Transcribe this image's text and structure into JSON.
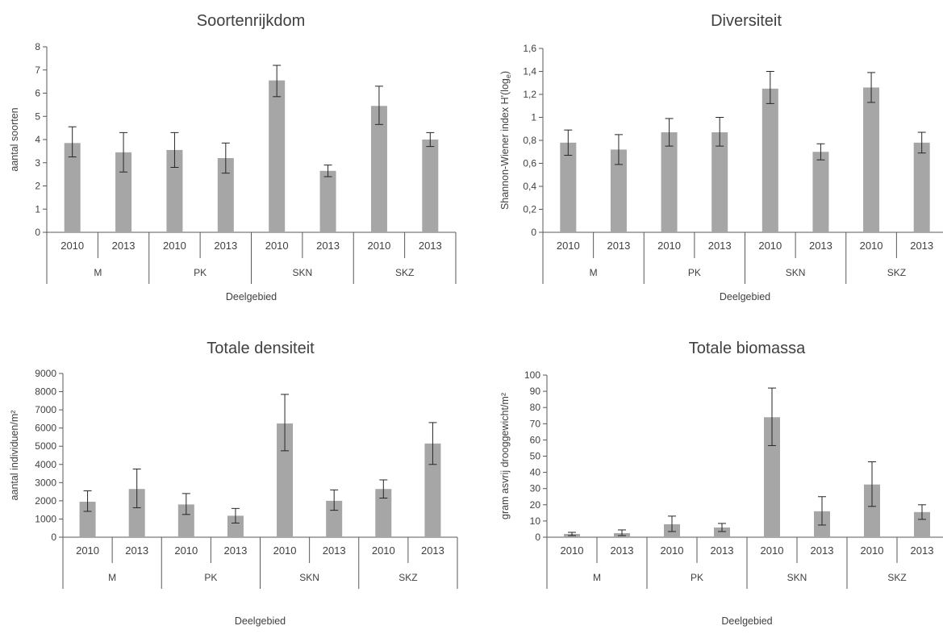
{
  "chart_data": [
    {
      "type": "bar",
      "title": "Soortenrijkdom",
      "xlabel": "Deelgebied",
      "ylabel": "aantal soorten",
      "ylabel_sub": "",
      "ylabel_end": "",
      "ylim": [
        0,
        8
      ],
      "yticks": [
        "0",
        "1",
        "2",
        "3",
        "4",
        "5",
        "6",
        "7",
        "8"
      ],
      "groups": [
        "M",
        "PK",
        "SKN",
        "SKZ"
      ],
      "years": [
        "2010",
        "2013"
      ],
      "values": [
        3.85,
        3.45,
        3.55,
        3.2,
        6.55,
        2.65,
        5.45,
        4.0
      ],
      "err_high": [
        4.55,
        4.3,
        4.3,
        3.85,
        7.2,
        2.9,
        6.3,
        4.3
      ],
      "err_low": [
        3.25,
        2.6,
        2.8,
        2.55,
        5.85,
        2.4,
        4.65,
        3.7
      ],
      "grid": false,
      "legend": "none"
    },
    {
      "type": "bar",
      "title": "Diversiteit",
      "xlabel": "Deelgebied",
      "ylabel": "Shannon-Wiener index H'(log",
      "ylabel_sub": "e",
      "ylabel_end": ")",
      "ylim": [
        0,
        1.6
      ],
      "yticks": [
        "0",
        "0,2",
        "0,4",
        "0,6",
        "0,8",
        "1",
        "1,2",
        "1,4",
        "1,6"
      ],
      "groups": [
        "M",
        "PK",
        "SKN",
        "SKZ"
      ],
      "years": [
        "2010",
        "2013"
      ],
      "values": [
        0.78,
        0.72,
        0.87,
        0.87,
        1.25,
        0.7,
        1.26,
        0.78
      ],
      "err_high": [
        0.89,
        0.85,
        0.99,
        1.0,
        1.4,
        0.77,
        1.39,
        0.87
      ],
      "err_low": [
        0.67,
        0.59,
        0.75,
        0.75,
        1.12,
        0.63,
        1.13,
        0.69
      ],
      "grid": false,
      "legend": "none"
    },
    {
      "type": "bar",
      "title": "Totale densiteit",
      "xlabel": "Deelgebied",
      "ylabel": "aantal individuen/m²",
      "ylabel_sub": "",
      "ylabel_end": "",
      "ylim": [
        0,
        9000
      ],
      "yticks": [
        "0",
        "1000",
        "2000",
        "3000",
        "4000",
        "5000",
        "6000",
        "7000",
        "8000",
        "9000"
      ],
      "groups": [
        "M",
        "PK",
        "SKN",
        "SKZ"
      ],
      "years": [
        "2010",
        "2013"
      ],
      "values": [
        1950,
        2650,
        1800,
        1180,
        6250,
        2000,
        2650,
        5150
      ],
      "err_high": [
        2550,
        3750,
        2400,
        1580,
        7850,
        2600,
        3150,
        6300
      ],
      "err_low": [
        1420,
        1620,
        1250,
        780,
        4750,
        1480,
        2150,
        4000
      ],
      "grid": false,
      "legend": "none"
    },
    {
      "type": "bar",
      "title": "Totale biomassa",
      "xlabel": "Deelgebied",
      "ylabel": "gram asvrij drooggewicht/m²",
      "ylabel_sub": "",
      "ylabel_end": "",
      "ylim": [
        0,
        100
      ],
      "yticks": [
        "0",
        "10",
        "20",
        "30",
        "40",
        "50",
        "60",
        "70",
        "80",
        "90",
        "100"
      ],
      "groups": [
        "M",
        "PK",
        "SKN",
        "SKZ"
      ],
      "years": [
        "2010",
        "2013"
      ],
      "values": [
        2,
        2.5,
        8,
        6,
        74,
        16,
        32.5,
        15.5
      ],
      "err_high": [
        3,
        4.5,
        13,
        8.5,
        92,
        25,
        46.5,
        20
      ],
      "err_low": [
        1,
        1,
        3.5,
        3.5,
        56.5,
        7.5,
        19,
        11
      ],
      "grid": false,
      "legend": "none"
    }
  ]
}
